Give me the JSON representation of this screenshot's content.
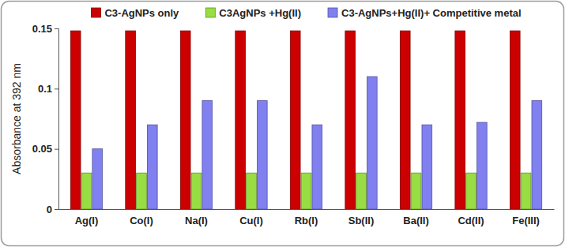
{
  "chart_data": {
    "type": "bar",
    "y_label": "Absorbance at 392 nm",
    "categories": [
      "Ag(I)",
      "Co(I)",
      "Na(I)",
      "Cu(I)",
      "Rb(I)",
      "Sb(II)",
      "Ba(II)",
      "Cd(II)",
      "Fe(III)"
    ],
    "series": [
      {
        "name": "C3-AgNPs only",
        "color": "#cc0000",
        "values": [
          0.148,
          0.148,
          0.148,
          0.148,
          0.148,
          0.148,
          0.148,
          0.148,
          0.148
        ]
      },
      {
        "name": "C3AgNPs +Hg(II)",
        "color": "#99dd44",
        "values": [
          0.03,
          0.03,
          0.03,
          0.03,
          0.03,
          0.03,
          0.03,
          0.03,
          0.03
        ]
      },
      {
        "name": "C3-AgNPs+Hg(II)+ Competitive metal",
        "color": "#8080f0",
        "values": [
          0.05,
          0.07,
          0.09,
          0.09,
          0.07,
          0.11,
          0.07,
          0.072,
          0.09
        ]
      }
    ],
    "ylim": [
      0,
      0.15
    ],
    "yticks": [
      0,
      0.05,
      0.1,
      0.15
    ],
    "grid": false,
    "legend": "top"
  }
}
